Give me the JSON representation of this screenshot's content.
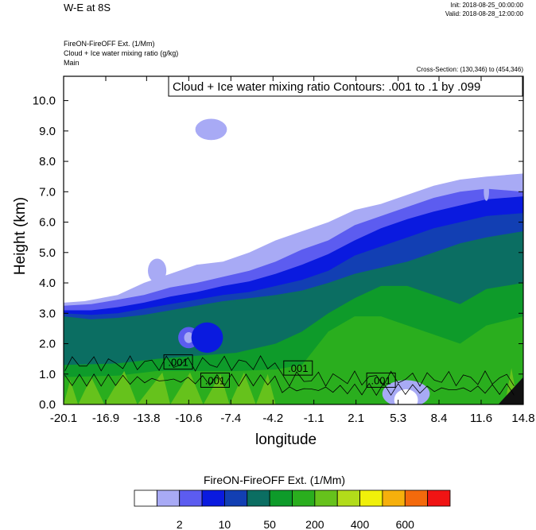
{
  "header": {
    "title": "W-E at 8S",
    "init": "Init: 2018-08-25_00:00:00",
    "valid": "Valid: 2018-08-28_12:00:00"
  },
  "fields": {
    "line1": "FireON-FireOFF Ext.   (1/Mm)",
    "line2": "Cloud + Ice water mixing ratio   (g/kg)",
    "line3": "Main"
  },
  "cross_section": "Cross-Section: (130,346) to (454,346)",
  "contour_box": "Cloud + Ice water mixing ratio Contours: .001 to .1 by .099",
  "colorbar": {
    "title": "FireON-FireOFF Ext.  (1/Mm)",
    "colors": [
      "#ffffff",
      "#a8aaf5",
      "#5c5cf0",
      "#0a1adf",
      "#123fb3",
      "#0b6e62",
      "#0e9b2a",
      "#2aae1e",
      "#66c21c",
      "#b2dc1a",
      "#f0f00a",
      "#f6b00c",
      "#f46a0c",
      "#f01414"
    ],
    "labels": [
      "2",
      "10",
      "50",
      "200",
      "400",
      "600"
    ]
  },
  "chart_data": {
    "type": "heatmap",
    "xlabel": "longitude",
    "ylabel": "Height (km)",
    "xlim": [
      -20.1,
      14.8
    ],
    "ylim": [
      0.0,
      10.8
    ],
    "x_ticks": [
      "-20.1",
      "-16.9",
      "-13.8",
      "-10.6",
      "-7.4",
      "-4.2",
      "-1.1",
      "2.1",
      "5.3",
      "8.4",
      "11.6",
      "14.8"
    ],
    "y_ticks": [
      "0.0",
      "1.0",
      "2.0",
      "3.0",
      "4.0",
      "5.0",
      "6.0",
      "7.0",
      "8.0",
      "9.0",
      "10.0"
    ],
    "contour_labels": [
      {
        "text": ".001",
        "x": -11.4,
        "y": 1.4
      },
      {
        "text": ".001",
        "x": -8.6,
        "y": 0.8
      },
      {
        "text": ".001",
        "x": -2.3,
        "y": 1.2
      },
      {
        "text": ".001",
        "x": 4.0,
        "y": 0.8
      }
    ],
    "layers": [
      {
        "name": "light-blue",
        "color": "#a8aaf5",
        "top": [
          [
            -20.1,
            3.35
          ],
          [
            -18.5,
            3.4
          ],
          [
            -16,
            3.6
          ],
          [
            -14,
            4.0
          ],
          [
            -12,
            4.3
          ],
          [
            -10,
            4.6
          ],
          [
            -8,
            4.7
          ],
          [
            -6,
            5.0
          ],
          [
            -4,
            5.4
          ],
          [
            -2,
            5.7
          ],
          [
            0,
            6.0
          ],
          [
            2,
            6.4
          ],
          [
            4,
            6.6
          ],
          [
            6,
            6.9
          ],
          [
            8,
            7.2
          ],
          [
            10,
            7.4
          ],
          [
            12,
            7.5
          ],
          [
            14.8,
            7.6
          ]
        ]
      },
      {
        "name": "medium-blue",
        "color": "#5c5cf0",
        "top": [
          [
            -20.1,
            3.25
          ],
          [
            -18,
            3.3
          ],
          [
            -16,
            3.45
          ],
          [
            -14,
            3.6
          ],
          [
            -12,
            3.85
          ],
          [
            -10,
            4.0
          ],
          [
            -8,
            4.2
          ],
          [
            -6,
            4.4
          ],
          [
            -4,
            4.7
          ],
          [
            -2,
            5.1
          ],
          [
            0,
            5.4
          ],
          [
            2,
            5.9
          ],
          [
            4,
            6.2
          ],
          [
            6,
            6.5
          ],
          [
            8,
            6.8
          ],
          [
            10,
            7.0
          ],
          [
            12,
            7.1
          ],
          [
            14.8,
            7.0
          ]
        ]
      },
      {
        "name": "deep-blue",
        "color": "#0a1adf",
        "top": [
          [
            -20.1,
            3.1
          ],
          [
            -18,
            3.1
          ],
          [
            -16,
            3.2
          ],
          [
            -14,
            3.35
          ],
          [
            -12,
            3.55
          ],
          [
            -10,
            3.7
          ],
          [
            -8,
            3.9
          ],
          [
            -6,
            4.05
          ],
          [
            -4,
            4.3
          ],
          [
            -2,
            4.6
          ],
          [
            0,
            4.95
          ],
          [
            2,
            5.4
          ],
          [
            4,
            5.8
          ],
          [
            6,
            6.1
          ],
          [
            8,
            6.35
          ],
          [
            10,
            6.55
          ],
          [
            12,
            6.75
          ],
          [
            14.8,
            6.85
          ]
        ]
      },
      {
        "name": "navy-blue",
        "color": "#123fb3",
        "top": [
          [
            -20.1,
            3.0
          ],
          [
            -18,
            2.95
          ],
          [
            -16,
            3.0
          ],
          [
            -14,
            3.15
          ],
          [
            -12,
            3.3
          ],
          [
            -10,
            3.45
          ],
          [
            -8,
            3.6
          ],
          [
            -6,
            3.7
          ],
          [
            -4,
            3.9
          ],
          [
            -2,
            4.1
          ],
          [
            0,
            4.4
          ],
          [
            2,
            4.9
          ],
          [
            4,
            5.2
          ],
          [
            6,
            5.5
          ],
          [
            8,
            5.8
          ],
          [
            10,
            6.0
          ],
          [
            12,
            6.2
          ],
          [
            14.8,
            6.3
          ]
        ]
      },
      {
        "name": "teal",
        "color": "#0b6e62",
        "top": [
          [
            -20.1,
            2.9
          ],
          [
            -18,
            2.8
          ],
          [
            -16,
            2.85
          ],
          [
            -14,
            2.95
          ],
          [
            -12,
            3.1
          ],
          [
            -10,
            3.25
          ],
          [
            -8,
            3.4
          ],
          [
            -6,
            3.5
          ],
          [
            -4,
            3.6
          ],
          [
            -2,
            3.75
          ],
          [
            0,
            4.0
          ],
          [
            2,
            4.3
          ],
          [
            4,
            4.5
          ],
          [
            6,
            4.7
          ],
          [
            8,
            5.0
          ],
          [
            10,
            5.3
          ],
          [
            12,
            5.5
          ],
          [
            14.8,
            5.7
          ]
        ]
      },
      {
        "name": "green",
        "color": "#0e9b2a",
        "top": [
          [
            -20.1,
            1.3
          ],
          [
            -16,
            1.35
          ],
          [
            -13,
            1.5
          ],
          [
            -10,
            1.6
          ],
          [
            -7,
            1.7
          ],
          [
            -4,
            2.0
          ],
          [
            -2,
            2.4
          ],
          [
            0,
            3.0
          ],
          [
            2,
            3.5
          ],
          [
            4,
            3.9
          ],
          [
            6,
            3.9
          ],
          [
            8,
            3.6
          ],
          [
            10,
            3.3
          ],
          [
            12,
            3.8
          ],
          [
            14.8,
            4.0
          ]
        ]
      },
      {
        "name": "bright-green",
        "color": "#2aae1e",
        "top": [
          [
            -20.1,
            0.9
          ],
          [
            -16,
            0.95
          ],
          [
            -13,
            1.1
          ],
          [
            -10,
            1.1
          ],
          [
            -7,
            1.1
          ],
          [
            -4,
            1.15
          ],
          [
            -2,
            1.3
          ],
          [
            0,
            2.4
          ],
          [
            2,
            2.9
          ],
          [
            4,
            2.9
          ],
          [
            6,
            2.6
          ],
          [
            8,
            2.3
          ],
          [
            10,
            2.0
          ],
          [
            12,
            2.6
          ],
          [
            14.8,
            2.9
          ]
        ]
      },
      {
        "name": "yellow-green",
        "color": "#66c21c",
        "top": [
          [
            -20.1,
            0.0
          ],
          [
            -19.6,
            0.8
          ],
          [
            -19,
            0.0
          ],
          [
            -18,
            0.9
          ],
          [
            -17,
            0.0
          ],
          [
            -15.5,
            1.1
          ],
          [
            -14.5,
            0.0
          ],
          [
            -12.6,
            1.05
          ],
          [
            -12,
            0.0
          ],
          [
            -10.5,
            1.05
          ],
          [
            -9.5,
            0.0
          ],
          [
            -8.2,
            1.0
          ],
          [
            -7.5,
            0.0
          ],
          [
            -6.4,
            1.05
          ],
          [
            -5.5,
            0.0
          ],
          [
            -4.6,
            1.0
          ],
          [
            -4,
            0.0
          ],
          [
            13.4,
            0.0
          ],
          [
            13.9,
            1.2
          ],
          [
            14.4,
            0.0
          ]
        ]
      }
    ],
    "blue_patches": [
      {
        "color": "#5c5cf0",
        "x": -10.6,
        "y": 2.2,
        "rx": 0.8,
        "ry": 0.35
      },
      {
        "color": "#a8aaf5",
        "x": -10.6,
        "y": 2.2,
        "rx": 0.35,
        "ry": 0.18
      },
      {
        "color": "#0a1adf",
        "x": -9.2,
        "y": 2.2,
        "rx": 1.2,
        "ry": 0.5
      },
      {
        "color": "#a8aaf5",
        "x": -8.9,
        "y": 9.05,
        "rx": 1.2,
        "ry": 0.35
      },
      {
        "color": "#a8aaf5",
        "x": -13.0,
        "y": 4.4,
        "rx": 0.7,
        "ry": 0.4
      },
      {
        "color": "#a8aaf5",
        "x": 5.9,
        "y": 0.35,
        "rx": 1.8,
        "ry": 0.45
      },
      {
        "color": "#ffffff",
        "x": 5.9,
        "y": 0.15,
        "rx": 0.9,
        "ry": 0.35
      },
      {
        "color": "#a8aaf5",
        "x": 12.0,
        "y": 7.0,
        "rx": 0.2,
        "ry": 0.3
      }
    ]
  }
}
